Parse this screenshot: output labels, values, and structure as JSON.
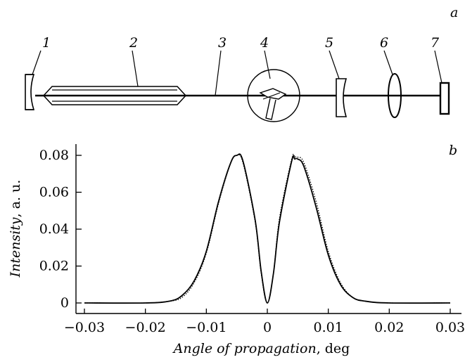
{
  "figure": {
    "panel_a_label": "a",
    "panel_b_label": "b",
    "components": [
      {
        "id": "mirror-1",
        "label": "1"
      },
      {
        "id": "laser-tube",
        "label": "2"
      },
      {
        "id": "beam",
        "label": "3"
      },
      {
        "id": "element-4",
        "label": "4"
      },
      {
        "id": "mirror-5",
        "label": "5"
      },
      {
        "id": "lens",
        "label": "6"
      },
      {
        "id": "detector",
        "label": "7"
      }
    ]
  },
  "chart_data": {
    "type": "line",
    "xlabel_italic": "Angle of propagation",
    "xlabel_unit": ", deg",
    "ylabel_italic": "Intensity",
    "ylabel_unit": ", a. u.",
    "xlim": [
      -0.03,
      0.03
    ],
    "ylim": [
      0,
      0.08
    ],
    "xticks": [
      -0.03,
      -0.02,
      -0.01,
      0,
      0.01,
      0.02,
      0.03
    ],
    "xtick_labels": [
      "−0.03",
      "−0.02",
      "−0.01",
      "0",
      "0.01",
      "0.02",
      "0.03"
    ],
    "yticks": [
      0,
      0.02,
      0.04,
      0.06,
      0.08
    ],
    "ytick_labels": [
      "0",
      "0.02",
      "0.04",
      "0.06",
      "0.08"
    ],
    "grid": false,
    "series": [
      {
        "style": "solid",
        "x": [
          -0.03,
          -0.02,
          -0.016,
          -0.014,
          -0.012,
          -0.01,
          -0.008,
          -0.006,
          -0.005,
          -0.004,
          -0.002,
          -0.001,
          0.0,
          0.001,
          0.002,
          0.004,
          0.0045,
          0.005,
          0.006,
          0.008,
          0.01,
          0.012,
          0.014,
          0.016,
          0.02,
          0.03
        ],
        "y": [
          0.0,
          0.0,
          0.001,
          0.004,
          0.012,
          0.028,
          0.055,
          0.076,
          0.08,
          0.077,
          0.045,
          0.017,
          0.0,
          0.016,
          0.044,
          0.077,
          0.078,
          0.078,
          0.074,
          0.052,
          0.026,
          0.01,
          0.003,
          0.001,
          0.0,
          0.0
        ]
      },
      {
        "style": "dotted",
        "x": [
          -0.03,
          -0.02,
          -0.016,
          -0.014,
          -0.012,
          -0.01,
          -0.008,
          -0.006,
          -0.005,
          -0.004,
          -0.002,
          -0.001,
          0.0,
          0.001,
          0.002,
          0.004,
          0.0045,
          0.005,
          0.006,
          0.008,
          0.01,
          0.012,
          0.014,
          0.016,
          0.02,
          0.03
        ],
        "y": [
          0.0,
          0.0,
          0.001,
          0.003,
          0.011,
          0.027,
          0.054,
          0.076,
          0.08,
          0.076,
          0.044,
          0.016,
          0.0,
          0.016,
          0.046,
          0.078,
          0.079,
          0.079,
          0.076,
          0.055,
          0.028,
          0.011,
          0.003,
          0.001,
          0.0,
          0.0
        ]
      }
    ]
  }
}
